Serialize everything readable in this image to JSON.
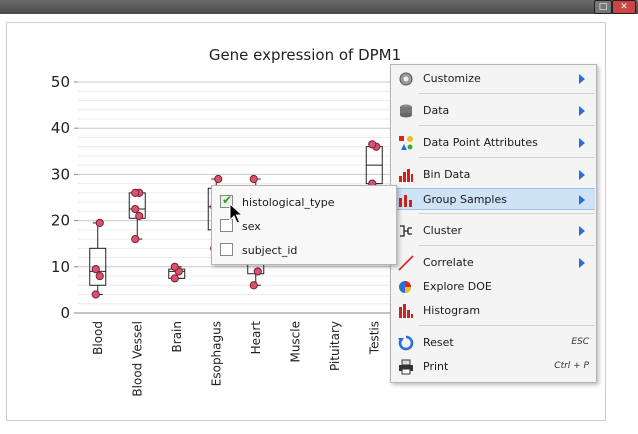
{
  "window": {
    "maximize_glyph": "□",
    "close_glyph": "✕"
  },
  "chart_data": {
    "type": "box",
    "title": "Gene expression of DPM1",
    "xlabel": "",
    "ylabel": "",
    "ylim": [
      0,
      50
    ],
    "yticks": [
      0,
      10,
      20,
      30,
      40,
      50
    ],
    "grid": true,
    "categories": [
      "Blood",
      "Blood Vessel",
      "Brain",
      "Esophagus",
      "Heart",
      "Muscle",
      "Pituitary",
      "Testis"
    ],
    "boxes": [
      {
        "category": "Blood",
        "min": 4,
        "q1": 6,
        "median": 9,
        "q3": 14,
        "max": 19.5,
        "points": [
          4,
          8,
          9.5,
          19.5
        ]
      },
      {
        "category": "Blood Vessel",
        "min": 16,
        "q1": 20.5,
        "median": 22.5,
        "q3": 26,
        "max": 26,
        "points": [
          16,
          21,
          22.5,
          26,
          26
        ]
      },
      {
        "category": "Brain",
        "min": 7.5,
        "q1": 7.5,
        "median": 9,
        "q3": 9.5,
        "max": 10,
        "points": [
          7.5,
          9,
          10
        ]
      },
      {
        "category": "Esophagus",
        "min": 14,
        "q1": 18,
        "median": 23,
        "q3": 27,
        "max": 29,
        "points": [
          14,
          20,
          23,
          29
        ]
      },
      {
        "category": "Heart",
        "min": 6,
        "q1": 8.5,
        "median": 18,
        "q3": 25,
        "max": 29,
        "points": [
          6,
          9,
          29
        ]
      },
      {
        "category": "Muscle",
        "points": []
      },
      {
        "category": "Pituitary",
        "points": []
      },
      {
        "category": "Testis",
        "min": 28,
        "q1": 28,
        "median": 32,
        "q3": 36,
        "max": 36.5,
        "points": [
          28,
          36,
          36.5
        ]
      }
    ]
  },
  "context_menu": {
    "items": [
      {
        "label": "Customize",
        "icon": "gear-icon",
        "submenu": true
      },
      {
        "label": "Data",
        "icon": "database-icon",
        "submenu": true
      },
      {
        "label": "Data Point Attributes",
        "icon": "attributes-icon",
        "submenu": true
      },
      {
        "label": "Bin Data",
        "icon": "bin-icon",
        "submenu": true
      },
      {
        "label": "Group Samples",
        "icon": "group-icon",
        "submenu": true,
        "active": true
      },
      {
        "label": "Cluster",
        "icon": "cluster-icon",
        "submenu": true
      },
      {
        "label": "Correlate",
        "icon": "correlate-icon",
        "submenu": true
      },
      {
        "label": "Explore DOE",
        "icon": "doe-icon",
        "submenu": false
      },
      {
        "label": "Histogram",
        "icon": "histogram-icon",
        "submenu": false
      },
      {
        "label": "Reset",
        "icon": "reset-icon",
        "shortcut": "ESC"
      },
      {
        "label": "Print",
        "icon": "printer-icon",
        "shortcut": "Ctrl + P"
      }
    ]
  },
  "group_submenu": {
    "items": [
      {
        "label": "histological_type",
        "checked": true
      },
      {
        "label": "sex",
        "checked": false
      },
      {
        "label": "subject_id",
        "checked": false
      }
    ],
    "check_glyph": "✔"
  },
  "colors": {
    "point_fill": "#d9536f",
    "point_stroke": "#7a1f33",
    "grid": "#dcdcdc",
    "menu_arrow": "#2a6fd6",
    "active_row": "#cfe3f7"
  }
}
